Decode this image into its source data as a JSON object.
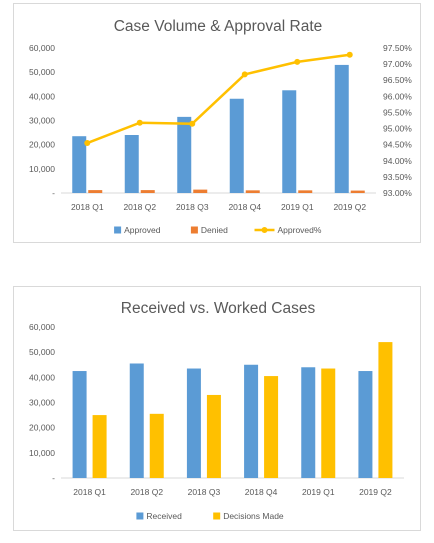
{
  "chart_data": [
    {
      "type": "bar",
      "title": "Case Volume & Approval Rate",
      "categories": [
        "2018 Q1",
        "2018 Q2",
        "2018 Q3",
        "2018 Q4",
        "2019 Q1",
        "2019 Q2"
      ],
      "ylim": [
        0,
        60000
      ],
      "y_ticks": [
        "-",
        "10,000",
        "20,000",
        "30,000",
        "40,000",
        "50,000",
        "60,000"
      ],
      "y2lim": [
        0.93,
        0.975
      ],
      "y2_ticks": [
        "93.00%",
        "93.50%",
        "94.00%",
        "94.50%",
        "95.00%",
        "95.50%",
        "96.00%",
        "96.50%",
        "97.00%",
        "97.50%"
      ],
      "legend_position": "bottom",
      "grid": false,
      "series": [
        {
          "name": "Approved",
          "kind": "bar",
          "color": "#5b9bd5",
          "values": [
            23500,
            24000,
            31500,
            39000,
            42500,
            53000
          ]
        },
        {
          "name": "Denied",
          "kind": "bar",
          "color": "#ed7d31",
          "values": [
            1200,
            1200,
            1400,
            1100,
            1100,
            1000
          ]
        },
        {
          "name": "Approved%",
          "kind": "line",
          "axis": "secondary",
          "color": "#ffc000",
          "values": [
            0.9455,
            0.9518,
            0.9515,
            0.9668,
            0.9707,
            0.9729
          ]
        }
      ]
    },
    {
      "type": "bar",
      "title": "Received vs. Worked Cases",
      "categories": [
        "2018 Q1",
        "2018 Q2",
        "2018 Q3",
        "2018 Q4",
        "2019 Q1",
        "2019 Q2"
      ],
      "ylim": [
        0,
        60000
      ],
      "y_ticks": [
        "-",
        "10,000",
        "20,000",
        "30,000",
        "40,000",
        "50,000",
        "60,000"
      ],
      "legend_position": "bottom",
      "grid": false,
      "series": [
        {
          "name": "Received",
          "kind": "bar",
          "color": "#5b9bd5",
          "values": [
            42500,
            45500,
            43500,
            45000,
            44000,
            42500
          ]
        },
        {
          "name": "Decisions Made",
          "kind": "bar",
          "color": "#ffc000",
          "values": [
            25000,
            25500,
            33000,
            40500,
            43500,
            54000
          ]
        }
      ]
    }
  ]
}
